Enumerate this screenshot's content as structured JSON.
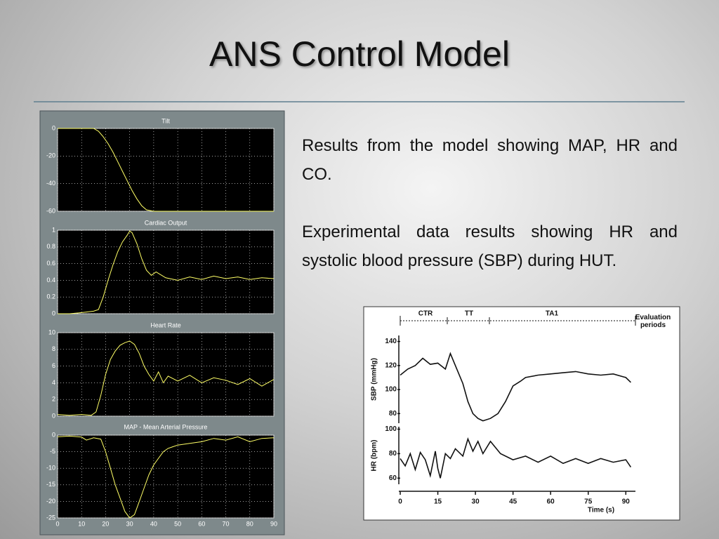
{
  "title": "ANS Control Model",
  "paragraphs": [
    "Results from the model showing MAP, HR and CO.",
    "Experimental data results showing HR and systolic blood pressure (SBP) during HUT."
  ],
  "chart_data": [
    {
      "type": "line",
      "title": "Tilt",
      "color": "#ffff66",
      "background": "#000000",
      "grid": true,
      "x": [
        0,
        5,
        10,
        15,
        17,
        19,
        21,
        23,
        25,
        27,
        29,
        31,
        33,
        35,
        37,
        40,
        50,
        60,
        70,
        80,
        90
      ],
      "values": [
        0,
        0,
        0,
        0,
        -2,
        -6,
        -11,
        -17,
        -24,
        -31,
        -38,
        -45,
        -51,
        -56,
        -59,
        -60,
        -60,
        -60,
        -60,
        -60,
        -60
      ],
      "xlim": [
        0,
        90
      ],
      "ylim": [
        -60,
        0
      ],
      "yticks": [
        0,
        -20,
        -40,
        -60
      ]
    },
    {
      "type": "line",
      "title": "Cardiac Output",
      "color": "#ffff66",
      "background": "#000000",
      "grid": true,
      "x": [
        0,
        5,
        9,
        12,
        15,
        17,
        19,
        21,
        23,
        25,
        27,
        29,
        30,
        31,
        33,
        35,
        37,
        39,
        41,
        45,
        50,
        55,
        60,
        65,
        70,
        75,
        80,
        85,
        90
      ],
      "values": [
        0,
        0,
        0.01,
        0.02,
        0.03,
        0.05,
        0.2,
        0.4,
        0.58,
        0.74,
        0.86,
        0.94,
        0.99,
        0.97,
        0.84,
        0.66,
        0.52,
        0.46,
        0.5,
        0.43,
        0.4,
        0.44,
        0.41,
        0.45,
        0.42,
        0.44,
        0.41,
        0.43,
        0.42
      ],
      "xlim": [
        0,
        90
      ],
      "ylim": [
        0,
        1
      ],
      "yticks": [
        1,
        0.8,
        0.6,
        0.4,
        0.2,
        0
      ]
    },
    {
      "type": "line",
      "title": "Heart Rate",
      "color": "#ffff66",
      "background": "#000000",
      "grid": true,
      "x": [
        0,
        5,
        10,
        14,
        16,
        18,
        20,
        22,
        24,
        26,
        28,
        30,
        32,
        34,
        36,
        38,
        40,
        42,
        44,
        46,
        50,
        55,
        60,
        65,
        70,
        75,
        80,
        85,
        90
      ],
      "values": [
        0.2,
        0.1,
        0.2,
        0.1,
        0.5,
        2.5,
        5,
        6.8,
        7.8,
        8.5,
        8.8,
        9,
        8.6,
        7.5,
        6,
        5,
        4.2,
        5.3,
        4,
        4.8,
        4.2,
        4.9,
        4,
        4.6,
        4.3,
        3.8,
        4.5,
        3.6,
        4.4
      ],
      "xlim": [
        0,
        90
      ],
      "ylim": [
        0,
        10
      ],
      "yticks": [
        10,
        8,
        6,
        4,
        2,
        0
      ]
    },
    {
      "type": "line",
      "title": "MAP - Mean Arterial Pressure",
      "color": "#ffff66",
      "background": "#000000",
      "grid": true,
      "x": [
        0,
        5,
        10,
        12,
        15,
        18,
        20,
        22,
        24,
        26,
        28,
        30,
        32,
        34,
        36,
        38,
        40,
        42,
        44,
        46,
        48,
        50,
        55,
        60,
        65,
        70,
        75,
        80,
        85,
        90
      ],
      "values": [
        -0.5,
        -0.3,
        -0.6,
        -1.5,
        -0.8,
        -1.2,
        -5,
        -10,
        -15,
        -19,
        -23,
        -25,
        -24,
        -20,
        -16,
        -12,
        -9,
        -7,
        -5,
        -4,
        -3.5,
        -3,
        -2.5,
        -2,
        -1,
        -1.5,
        -0.5,
        -2,
        -1,
        -0.8
      ],
      "xlim": [
        0,
        90
      ],
      "ylim": [
        -25,
        0
      ],
      "yticks": [
        0,
        -5,
        -10,
        -15,
        -20,
        -25
      ],
      "xticks": [
        0,
        10,
        20,
        30,
        40,
        50,
        60,
        70,
        80,
        90
      ]
    },
    {
      "type": "line",
      "y_label": "SBP (mmHg)",
      "color": "#111111",
      "grid": false,
      "annotations": [
        "CTR",
        "TT",
        "TA1",
        "Evaluation periods"
      ],
      "x": [
        0,
        3,
        6,
        9,
        12,
        15,
        18,
        20,
        22,
        25,
        27,
        29,
        31,
        33,
        36,
        39,
        42,
        45,
        48,
        50,
        55,
        60,
        65,
        70,
        75,
        80,
        85,
        90,
        92
      ],
      "values": [
        112,
        117,
        120,
        126,
        121,
        122,
        117,
        130,
        120,
        105,
        90,
        80,
        76,
        74,
        76,
        80,
        90,
        103,
        107,
        110,
        112,
        113,
        114,
        115,
        113,
        112,
        113,
        110,
        106
      ],
      "xlim": [
        0,
        93
      ],
      "ylim": [
        72,
        145
      ],
      "yticks": [
        80,
        100,
        120,
        140
      ]
    },
    {
      "type": "line",
      "y_label": "HR (bpm)",
      "x_label": "Time (s)",
      "color": "#111111",
      "grid": false,
      "x": [
        0,
        2,
        4,
        6,
        8,
        10,
        12,
        14,
        15,
        16,
        18,
        20,
        22,
        25,
        27,
        29,
        31,
        33,
        36,
        40,
        45,
        50,
        55,
        60,
        65,
        70,
        75,
        80,
        85,
        90,
        92
      ],
      "values": [
        76,
        70,
        80,
        67,
        81,
        75,
        62,
        82,
        68,
        60,
        80,
        76,
        84,
        78,
        92,
        82,
        90,
        80,
        90,
        80,
        75,
        78,
        73,
        78,
        72,
        76,
        72,
        76,
        73,
        75,
        69
      ],
      "xlim": [
        0,
        93
      ],
      "ylim": [
        55,
        102
      ],
      "yticks": [
        60,
        80,
        100
      ],
      "xticks": [
        0,
        15,
        30,
        45,
        60,
        75,
        90
      ]
    }
  ]
}
